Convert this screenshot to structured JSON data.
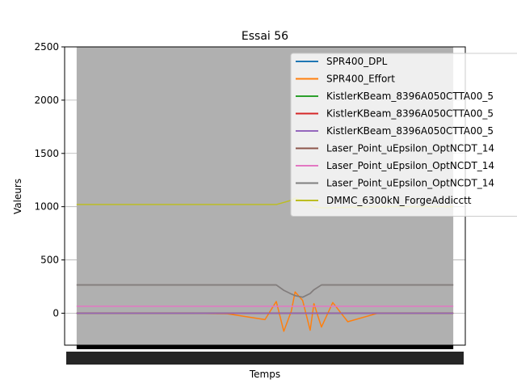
{
  "chart_data": {
    "type": "line",
    "title": "Essai 56",
    "xlabel": "Temps",
    "ylabel": "Valeurs",
    "ylim": [
      -300,
      2500
    ],
    "yticks": [
      0,
      500,
      1000,
      1500,
      2000,
      2500
    ],
    "grid": "y",
    "legend_position": "top-right",
    "background": "#ffffff",
    "shaded_region": {
      "color": "#b0b0b0",
      "x": [
        0.03,
        0.97
      ]
    },
    "x": [
      0.0,
      0.1,
      0.2,
      0.3,
      0.4,
      0.5,
      0.53,
      0.55,
      0.57,
      0.58,
      0.6,
      0.62,
      0.63,
      0.65,
      0.68,
      0.72,
      0.8,
      0.9,
      1.0
    ],
    "series": [
      {
        "name": "SPR400_DPL",
        "color": "#1f77b4",
        "values": [
          0,
          0,
          0,
          0,
          0,
          0,
          0,
          0,
          0,
          0,
          0,
          0,
          0,
          0,
          0,
          0,
          0,
          0,
          0
        ]
      },
      {
        "name": "SPR400_Effort",
        "color": "#ff7f0e",
        "values": [
          0,
          0,
          0,
          0,
          -5,
          -60,
          110,
          -170,
          20,
          200,
          120,
          -160,
          90,
          -130,
          100,
          -80,
          0,
          0,
          0
        ]
      },
      {
        "name": "KistlerKBeam_8396A050CTTA00_5",
        "color": "#2ca02c",
        "values": [
          0,
          0,
          0,
          0,
          0,
          0,
          0,
          0,
          0,
          0,
          0,
          0,
          0,
          0,
          0,
          0,
          0,
          0,
          0
        ]
      },
      {
        "name": "KistlerKBeam_8396A050CTTA00_5",
        "color": "#d62728",
        "values": [
          0,
          0,
          0,
          0,
          0,
          0,
          0,
          0,
          0,
          0,
          0,
          0,
          0,
          0,
          0,
          0,
          0,
          0,
          0
        ]
      },
      {
        "name": "KistlerKBeam_8396A050CTTA00_5",
        "color": "#9467bd",
        "values": [
          0,
          0,
          0,
          0,
          0,
          0,
          0,
          0,
          0,
          0,
          0,
          0,
          0,
          0,
          0,
          0,
          0,
          0,
          0
        ]
      },
      {
        "name": "Laser_Point_uEpsilon_OptNCDT_14",
        "color": "#8c564b",
        "values": [
          265,
          265,
          265,
          265,
          265,
          265,
          265,
          215,
          180,
          165,
          150,
          185,
          220,
          265,
          265,
          265,
          265,
          265,
          265
        ]
      },
      {
        "name": "Laser_Point_uEpsilon_OptNCDT_14",
        "color": "#e377c2",
        "values": [
          65,
          65,
          65,
          65,
          65,
          65,
          65,
          65,
          65,
          65,
          65,
          65,
          65,
          65,
          65,
          65,
          65,
          65,
          65
        ]
      },
      {
        "name": "Laser_Point_uEpsilon_OptNCDT_14",
        "color": "#7f7f7f",
        "values": [
          265,
          265,
          265,
          265,
          265,
          265,
          265,
          215,
          180,
          165,
          150,
          185,
          220,
          265,
          265,
          265,
          265,
          265,
          265
        ]
      },
      {
        "name": "DMMC_6300kN_ForgeAddicctt",
        "color": "#bcbd22",
        "values": [
          1020,
          1020,
          1020,
          1020,
          1020,
          1020,
          1020,
          1040,
          1060,
          1080,
          1060,
          1030,
          1000,
          990,
          990,
          995,
          1000,
          1000,
          1000
        ]
      }
    ]
  }
}
